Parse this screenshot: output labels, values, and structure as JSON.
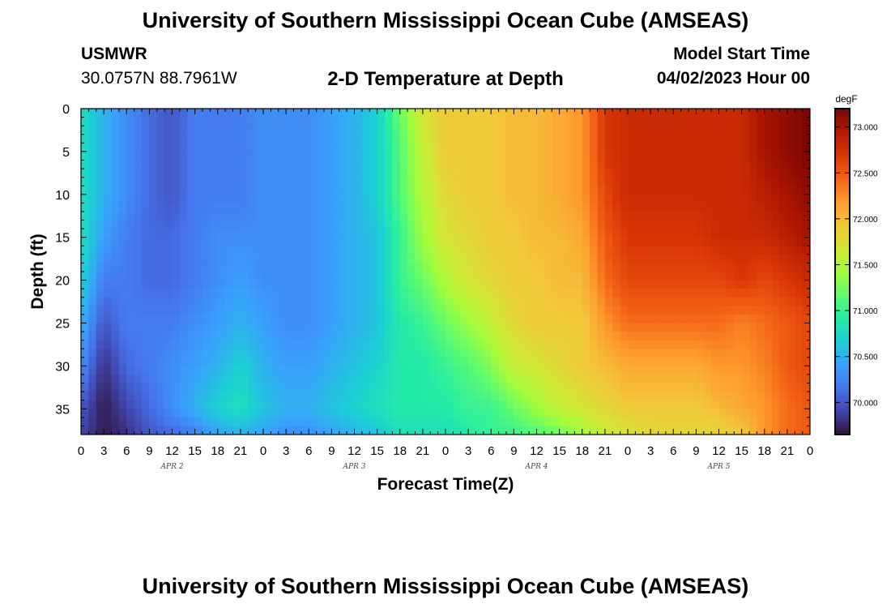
{
  "header": {
    "title": "University of Southern Mississippi Ocean Cube (AMSEAS)",
    "station": "USMWR",
    "coords": "30.0757N  88.7961W",
    "subtitle": "2-D Temperature at Depth",
    "model_start_label": "Model Start Time",
    "model_start_value": "04/02/2023 Hour 00"
  },
  "footer": {
    "title": "University of Southern Mississippi Ocean Cube (AMSEAS)"
  },
  "colors": {
    "background": "#ffffff",
    "colormap": [
      "#30123b",
      "#4145ab",
      "#4675ed",
      "#39a2fc",
      "#1bcfd4",
      "#24eca6",
      "#61fc6c",
      "#a4fc3b",
      "#d1e834",
      "#f3c63a",
      "#fe9b2d",
      "#f36315",
      "#d93806",
      "#b11901",
      "#7a0402"
    ]
  },
  "chart_data": {
    "type": "heatmap",
    "title": "2-D Temperature at Depth",
    "xlabel": "Forecast Time(Z)",
    "ylabel": "Depth (ft)",
    "colorbar_label": "degF",
    "x_tick_labels": [
      "0",
      "3",
      "6",
      "9",
      "12",
      "15",
      "18",
      "21",
      "0",
      "3",
      "6",
      "9",
      "12",
      "15",
      "18",
      "21",
      "0",
      "3",
      "6",
      "9",
      "12",
      "15",
      "18",
      "21",
      "0",
      "3",
      "6",
      "9",
      "12",
      "15",
      "18",
      "21",
      "0"
    ],
    "date_labels": [
      "APR 2",
      "APR 3",
      "APR 4",
      "APR 5"
    ],
    "x_range_hours": [
      0,
      96
    ],
    "y_ticks": [
      0,
      5,
      10,
      15,
      20,
      25,
      30,
      35
    ],
    "y_range": [
      0,
      38
    ],
    "color_range": [
      69.65,
      73.2
    ],
    "colorbar_ticks": [
      "73.000",
      "72.500",
      "72.000",
      "71.500",
      "71.000",
      "70.500",
      "70.000"
    ],
    "colorbar_tick_values": [
      73.0,
      72.5,
      72.0,
      71.5,
      71.0,
      70.5,
      70.0
    ],
    "x_hours": [
      0,
      3,
      6,
      9,
      12,
      15,
      18,
      21,
      24,
      27,
      30,
      33,
      36,
      39,
      42,
      45,
      48,
      51,
      54,
      57,
      60,
      63,
      66,
      69,
      72,
      75,
      78,
      81,
      84,
      87,
      90,
      93,
      96
    ],
    "depths_ft": [
      0,
      5,
      10,
      15,
      20,
      25,
      30,
      35,
      38
    ],
    "values_degF": [
      [
        70.8,
        70.8,
        70.8,
        70.8,
        70.7,
        70.5,
        70.3,
        70.0,
        69.9
      ],
      [
        70.5,
        70.5,
        70.5,
        70.4,
        70.2,
        70.0,
        69.8,
        69.7,
        69.7
      ],
      [
        70.3,
        70.3,
        70.3,
        70.2,
        70.2,
        70.2,
        70.1,
        69.9,
        69.8
      ],
      [
        70.1,
        70.1,
        70.1,
        70.1,
        70.1,
        70.2,
        70.2,
        70.1,
        70.0
      ],
      [
        70.0,
        70.0,
        70.0,
        70.1,
        70.1,
        70.2,
        70.3,
        70.3,
        70.1
      ],
      [
        70.2,
        70.2,
        70.2,
        70.2,
        70.2,
        70.3,
        70.4,
        70.5,
        70.2
      ],
      [
        70.2,
        70.2,
        70.2,
        70.3,
        70.3,
        70.4,
        70.5,
        70.7,
        70.4
      ],
      [
        70.2,
        70.2,
        70.2,
        70.3,
        70.4,
        70.5,
        70.7,
        70.8,
        70.5
      ],
      [
        70.3,
        70.3,
        70.3,
        70.3,
        70.3,
        70.4,
        70.5,
        70.6,
        70.4
      ],
      [
        70.3,
        70.3,
        70.3,
        70.3,
        70.3,
        70.3,
        70.4,
        70.5,
        70.3
      ],
      [
        70.3,
        70.3,
        70.3,
        70.3,
        70.3,
        70.3,
        70.4,
        70.5,
        70.3
      ],
      [
        70.4,
        70.4,
        70.4,
        70.4,
        70.4,
        70.4,
        70.5,
        70.6,
        70.4
      ],
      [
        70.5,
        70.5,
        70.5,
        70.5,
        70.5,
        70.5,
        70.6,
        70.7,
        70.5
      ],
      [
        70.7,
        70.7,
        70.7,
        70.6,
        70.6,
        70.6,
        70.7,
        70.8,
        70.6
      ],
      [
        71.2,
        71.1,
        71.1,
        71.0,
        71.0,
        70.9,
        70.9,
        70.9,
        70.8
      ],
      [
        71.7,
        71.6,
        71.5,
        71.4,
        71.2,
        71.0,
        70.9,
        70.9,
        70.8
      ],
      [
        71.9,
        71.9,
        71.8,
        71.7,
        71.5,
        71.2,
        71.0,
        70.9,
        70.8
      ],
      [
        71.9,
        71.9,
        71.9,
        71.8,
        71.7,
        71.4,
        71.1,
        71.0,
        70.9
      ],
      [
        71.9,
        71.9,
        71.9,
        71.9,
        71.8,
        71.6,
        71.3,
        71.0,
        71.0
      ],
      [
        72.0,
        72.0,
        72.0,
        71.9,
        71.9,
        71.8,
        71.6,
        71.2,
        71.0
      ],
      [
        72.0,
        72.0,
        72.0,
        72.0,
        71.9,
        71.9,
        71.7,
        71.4,
        71.1
      ],
      [
        72.1,
        72.1,
        72.1,
        72.0,
        72.0,
        71.9,
        71.8,
        71.6,
        71.2
      ],
      [
        72.2,
        72.2,
        72.2,
        72.1,
        72.0,
        71.9,
        71.9,
        71.7,
        71.4
      ],
      [
        72.7,
        72.7,
        72.6,
        72.5,
        72.4,
        72.2,
        72.0,
        71.8,
        71.6
      ],
      [
        72.8,
        72.8,
        72.8,
        72.7,
        72.6,
        72.4,
        72.1,
        71.9,
        71.7
      ],
      [
        72.8,
        72.8,
        72.8,
        72.7,
        72.6,
        72.4,
        72.1,
        71.9,
        71.8
      ],
      [
        72.8,
        72.8,
        72.8,
        72.7,
        72.6,
        72.4,
        72.1,
        71.9,
        71.8
      ],
      [
        72.8,
        72.8,
        72.8,
        72.7,
        72.6,
        72.4,
        72.1,
        71.9,
        71.8
      ],
      [
        72.8,
        72.8,
        72.8,
        72.8,
        72.6,
        72.4,
        72.2,
        72.0,
        71.8
      ],
      [
        72.8,
        72.8,
        72.8,
        72.8,
        72.7,
        72.3,
        72.2,
        72.1,
        71.9
      ],
      [
        73.0,
        73.0,
        72.9,
        72.8,
        72.6,
        72.4,
        72.3,
        72.2,
        72.2
      ],
      [
        73.1,
        73.1,
        73.0,
        72.9,
        72.7,
        72.5,
        72.5,
        72.4,
        72.4
      ],
      [
        73.2,
        73.2,
        73.1,
        73.0,
        72.8,
        72.6,
        72.6,
        72.5,
        72.5
      ]
    ]
  }
}
